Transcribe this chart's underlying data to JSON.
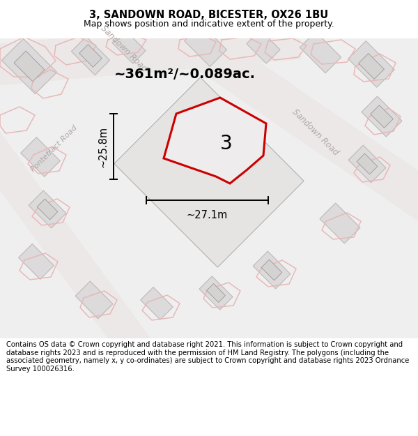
{
  "title": "3, SANDOWN ROAD, BICESTER, OX26 1BU",
  "subtitle": "Map shows position and indicative extent of the property.",
  "footer": "Contains OS data © Crown copyright and database right 2021. This information is subject to Crown copyright and database rights 2023 and is reproduced with the permission of HM Land Registry. The polygons (including the associated geometry, namely x, y co-ordinates) are subject to Crown copyright and database rights 2023 Ordnance Survey 100026316.",
  "area_label": "~361m²/~0.089ac.",
  "width_label": "~27.1m",
  "height_label": "~25.8m",
  "property_number": "3",
  "bg_color": "#f0efef",
  "road_color_light": "#f0d8d8",
  "building_fill": "#dcdada",
  "building_stroke": "#c0b8b8",
  "highlight_fill": "#e4e2e2",
  "red_color": "#cc0000",
  "title_fontsize": 10.5,
  "subtitle_fontsize": 9,
  "footer_fontsize": 7.2,
  "road_label_color": "#b0a8a8",
  "figsize": [
    6.0,
    6.25
  ],
  "dpi": 100
}
